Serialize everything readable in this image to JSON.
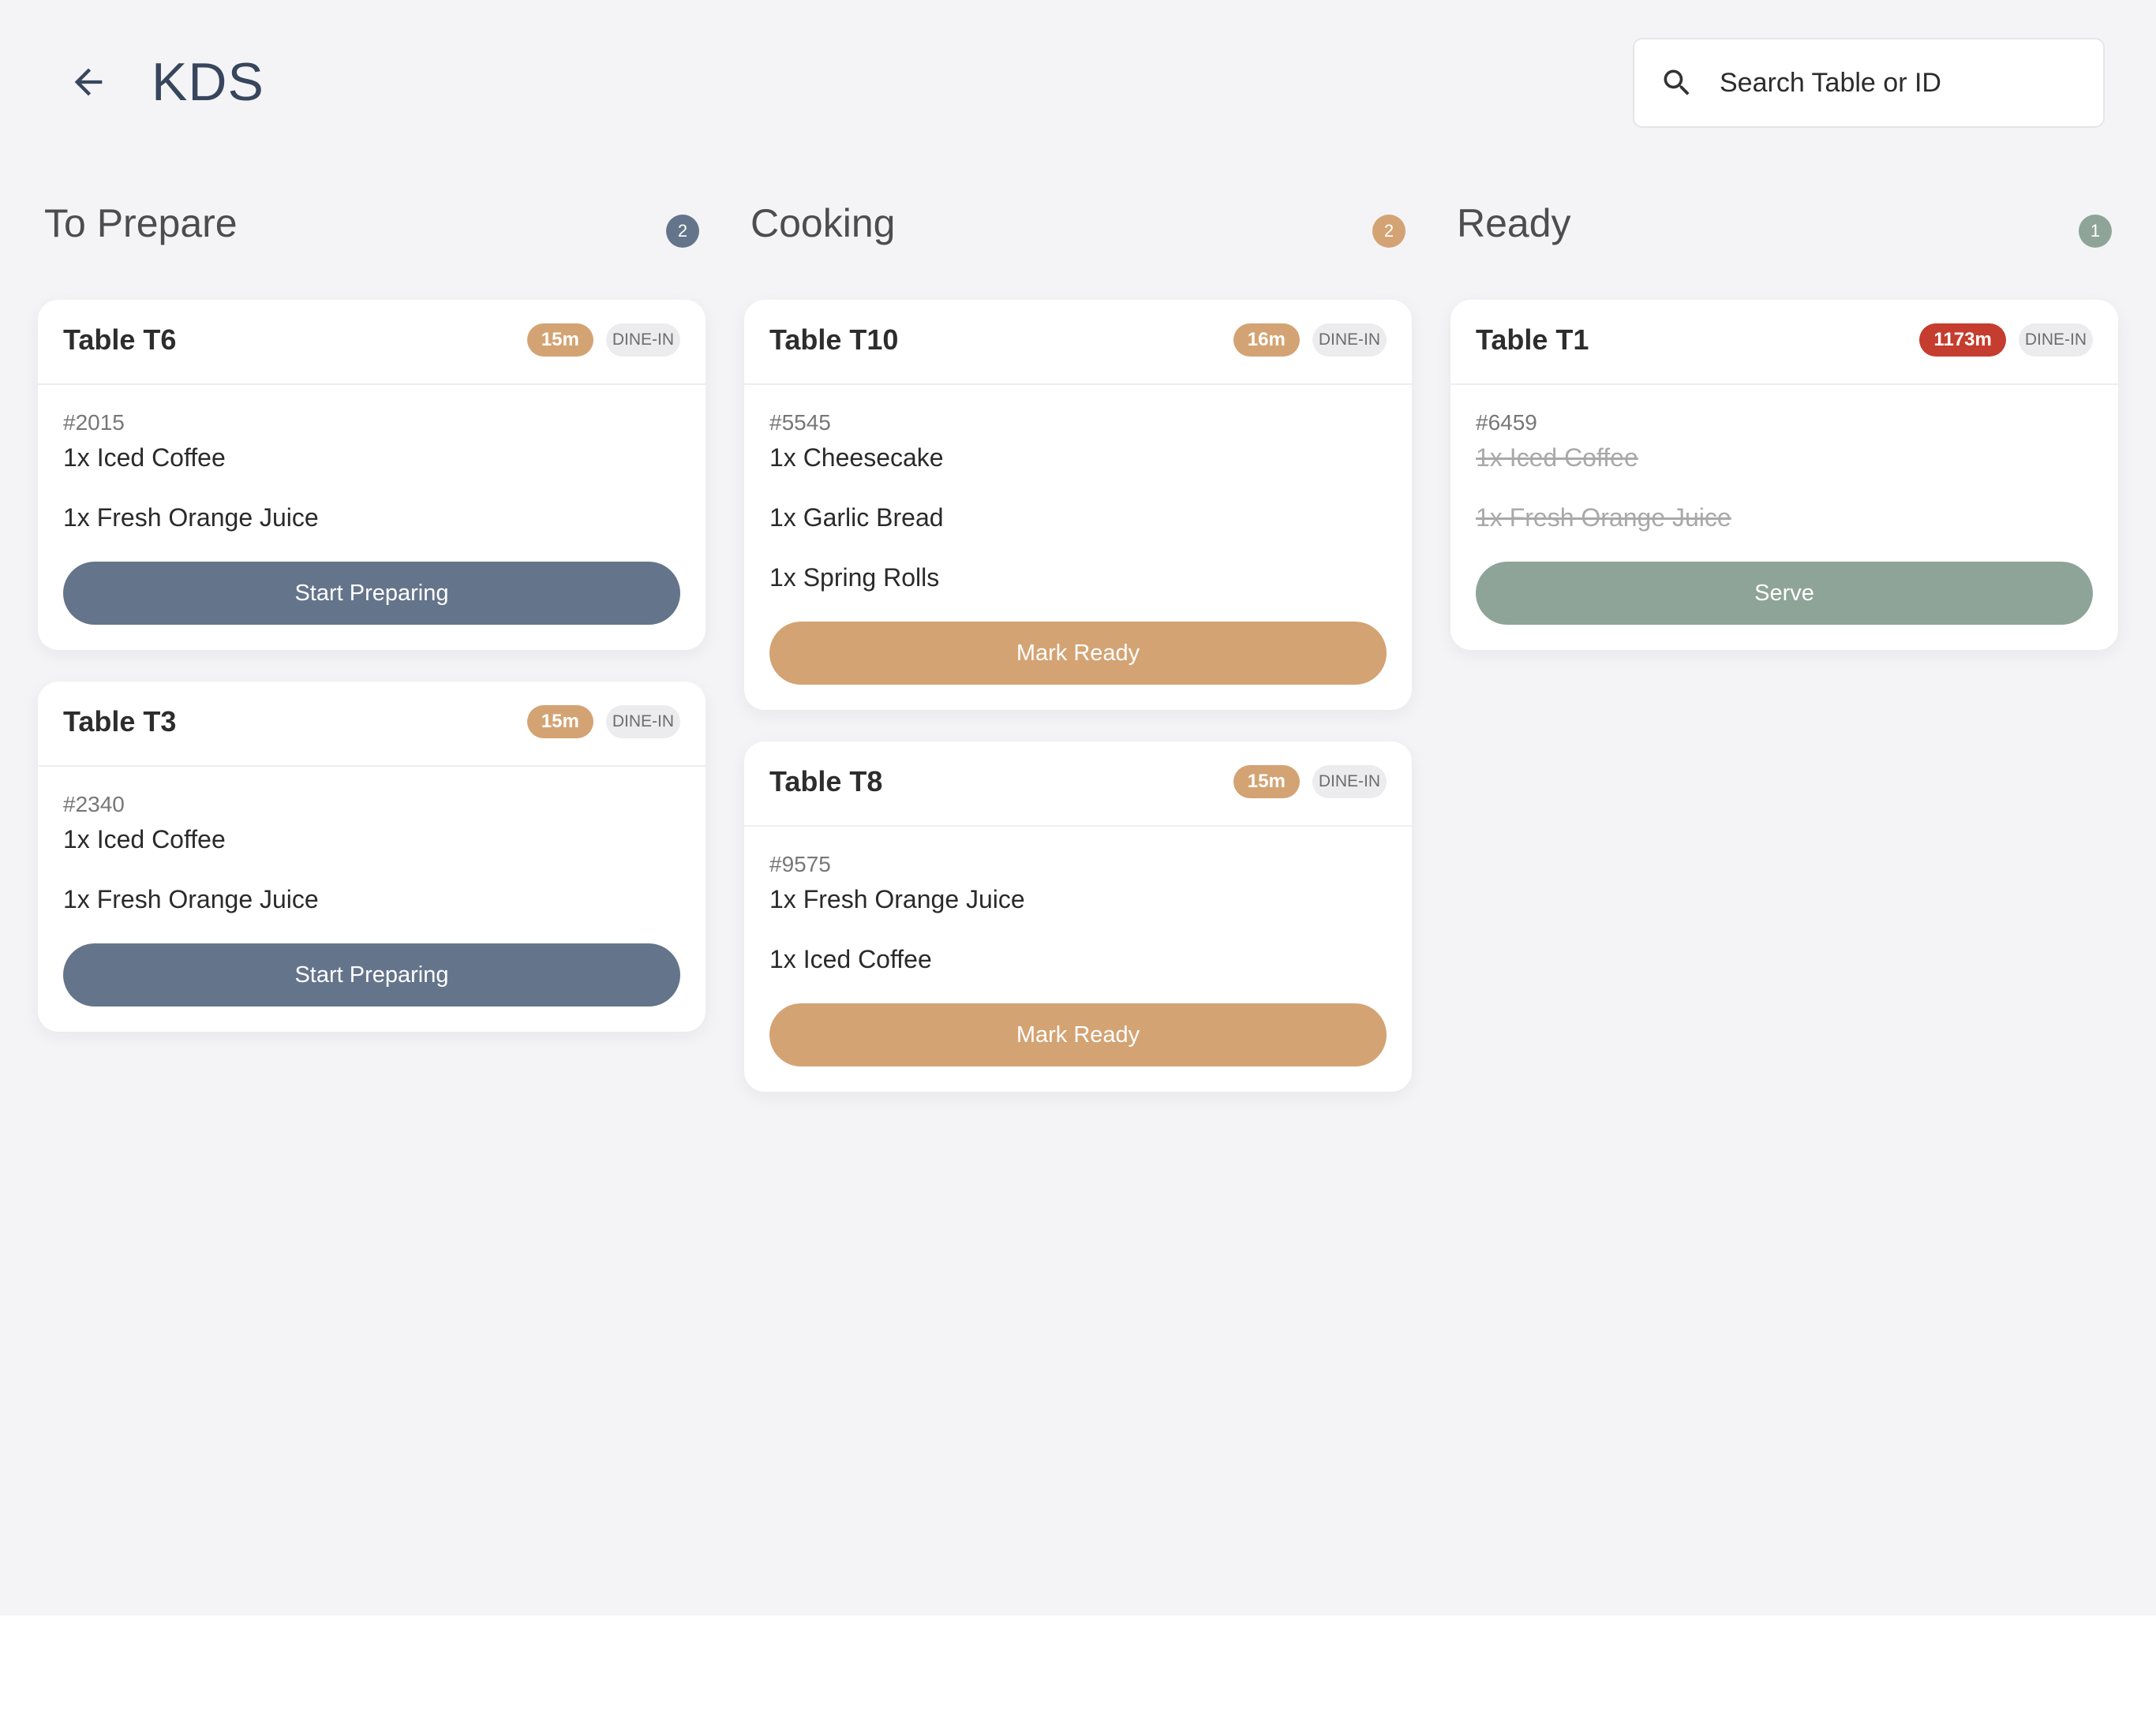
{
  "app": {
    "title": "KDS",
    "search": {
      "placeholder": "Search Table or ID",
      "value": ""
    }
  },
  "colors": {
    "background": "#f4f4f6",
    "title": "#37465c",
    "prepare": "#64748b",
    "cooking": "#d4a373",
    "ready": "#8fa498",
    "overdue": "#c53d2e"
  },
  "columns": [
    {
      "title": "To Prepare",
      "count": "2",
      "orders": [
        {
          "table": "Table T6",
          "time": "15m",
          "type": "DINE-IN",
          "id": "#2015",
          "items": [
            "1x Iced Coffee",
            "1x Fresh Orange Juice"
          ],
          "action": "Start Preparing"
        },
        {
          "table": "Table T3",
          "time": "15m",
          "type": "DINE-IN",
          "id": "#2340",
          "items": [
            "1x Iced Coffee",
            "1x Fresh Orange Juice"
          ],
          "action": "Start Preparing"
        }
      ]
    },
    {
      "title": "Cooking",
      "count": "2",
      "orders": [
        {
          "table": "Table T10",
          "time": "16m",
          "type": "DINE-IN",
          "id": "#5545",
          "items": [
            "1x Cheesecake",
            "1x Garlic Bread",
            "1x Spring Rolls"
          ],
          "action": "Mark Ready"
        },
        {
          "table": "Table T8",
          "time": "15m",
          "type": "DINE-IN",
          "id": "#9575",
          "items": [
            "1x Fresh Orange Juice",
            "1x Iced Coffee"
          ],
          "action": "Mark Ready"
        }
      ]
    },
    {
      "title": "Ready",
      "count": "1",
      "orders": [
        {
          "table": "Table T1",
          "time": "1173m",
          "type": "DINE-IN",
          "id": "#6459",
          "items": [
            "1x Iced Coffee",
            "1x Fresh Orange Juice"
          ],
          "action": "Serve"
        }
      ]
    }
  ]
}
